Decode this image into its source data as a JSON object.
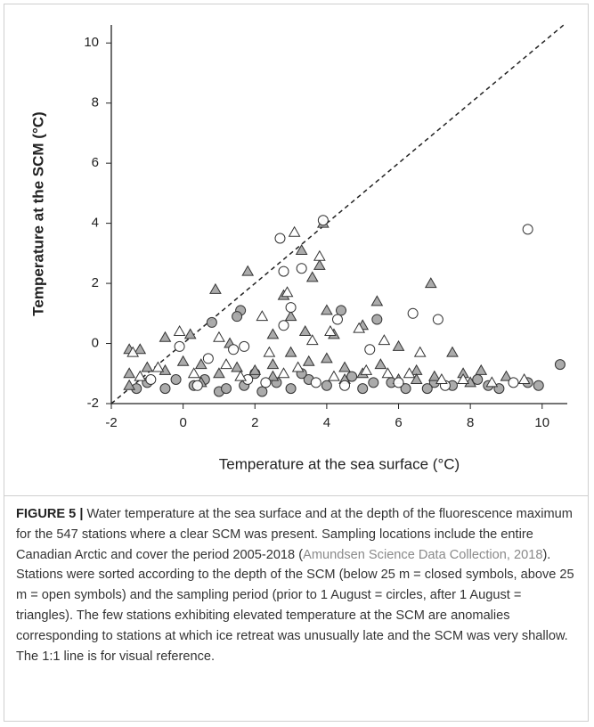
{
  "chart_data": {
    "type": "scatter",
    "x_label": "Temperature at the sea surface (°C)",
    "y_label": "Temperature at the SCM (°C)",
    "xlim": [
      -2,
      10.7
    ],
    "ylim": [
      -2,
      10.6
    ],
    "xticks": [
      -2,
      0,
      2,
      4,
      6,
      8,
      10
    ],
    "yticks": [
      -2,
      0,
      2,
      4,
      6,
      8,
      10
    ],
    "reference_line": "1:1",
    "grid": false,
    "series": [
      {
        "marker": "circle",
        "color": "#a6a6a6",
        "x": [
          0.8,
          1.6,
          1.5,
          4.4,
          5.4,
          10.5,
          9.6,
          9.9,
          8.8,
          7.5,
          6.2,
          5.0,
          3.0,
          2.2,
          1.0,
          0.3,
          -0.5,
          -1.3,
          -1.0,
          4.0,
          5.8,
          7.0,
          8.2,
          3.5,
          2.6,
          1.7,
          -0.2,
          2.0,
          4.7,
          6.8,
          8.5,
          1.2,
          0.6,
          3.3,
          5.3
        ],
        "values": [
          0.7,
          1.1,
          0.9,
          1.1,
          0.8,
          -0.7,
          -1.3,
          -1.4,
          -1.5,
          -1.4,
          -1.5,
          -1.5,
          -1.5,
          -1.6,
          -1.6,
          -1.4,
          -1.5,
          -1.5,
          -1.3,
          -1.4,
          -1.3,
          -1.3,
          -1.2,
          -1.2,
          -1.3,
          -1.4,
          -1.2,
          -1.0,
          -1.1,
          -1.5,
          -1.4,
          -1.5,
          -1.2,
          -1.0,
          -1.3
        ]
      },
      {
        "marker": "triangle",
        "color": "#a6a6a6",
        "x": [
          0.9,
          1.8,
          3.3,
          3.6,
          3.8,
          3.9,
          6.9,
          5.4,
          2.8,
          3.0,
          4.0,
          -1.5,
          -1.2,
          -0.5,
          0.2,
          1.3,
          2.5,
          3.4,
          4.2,
          5.0,
          6.0,
          7.5,
          8.3,
          9.0,
          7.8,
          6.5,
          5.5,
          4.5,
          3.5,
          2.5,
          1.5,
          0.5,
          -0.5,
          -1.5,
          -1.0,
          0.0,
          1.0,
          2.0,
          3.0,
          4.0,
          5.0,
          6.0,
          7.0,
          8.0,
          -1.5,
          0.5,
          2.5,
          4.5,
          6.5
        ],
        "values": [
          1.8,
          2.4,
          3.1,
          2.2,
          2.6,
          4.0,
          2.0,
          1.4,
          1.6,
          0.9,
          1.1,
          -0.2,
          -0.2,
          0.2,
          0.3,
          0.0,
          0.3,
          0.4,
          0.3,
          0.6,
          -0.1,
          -0.3,
          -0.9,
          -1.1,
          -1.0,
          -0.9,
          -0.7,
          -0.8,
          -0.6,
          -0.7,
          -0.8,
          -0.7,
          -0.9,
          -1.0,
          -0.8,
          -0.6,
          -1.0,
          -0.9,
          -0.3,
          -0.5,
          -1.0,
          -1.2,
          -1.1,
          -1.3,
          -1.4,
          -1.3,
          -1.1,
          -1.2,
          -1.2
        ]
      },
      {
        "marker": "circle",
        "color": "#ffffff",
        "x": [
          3.9,
          2.7,
          9.6,
          2.8,
          3.3,
          3.0,
          7.1,
          6.4,
          2.8,
          1.4,
          1.7,
          0.7,
          -0.1,
          4.3,
          5.2,
          -0.9,
          0.4,
          2.3,
          4.5,
          6.0,
          7.3,
          9.2,
          1.8,
          3.7
        ],
        "values": [
          4.1,
          3.5,
          3.8,
          2.4,
          2.5,
          1.2,
          0.8,
          1.0,
          0.6,
          -0.2,
          -0.1,
          -0.5,
          -0.1,
          0.8,
          -0.2,
          -1.2,
          -1.4,
          -1.3,
          -1.4,
          -1.3,
          -1.4,
          -1.3,
          -1.2,
          -1.3
        ]
      },
      {
        "marker": "triangle",
        "color": "#ffffff",
        "x": [
          3.1,
          3.8,
          2.2,
          2.9,
          4.1,
          5.6,
          4.9,
          6.6,
          -1.4,
          -0.1,
          1.0,
          2.4,
          3.6,
          -0.7,
          0.3,
          1.6,
          2.8,
          4.2,
          5.7,
          7.2,
          8.6,
          9.5,
          -1.2,
          1.2,
          3.2,
          5.1,
          6.3,
          7.8
        ],
        "values": [
          3.7,
          2.9,
          0.9,
          1.7,
          0.4,
          0.1,
          0.5,
          -0.3,
          -0.3,
          0.4,
          0.2,
          -0.3,
          0.1,
          -0.8,
          -1.0,
          -1.1,
          -1.0,
          -1.1,
          -1.0,
          -1.2,
          -1.3,
          -1.2,
          -1.1,
          -0.7,
          -0.8,
          -0.9,
          -1.0,
          -1.2
        ]
      }
    ]
  },
  "caption": {
    "label": "FIGURE 5 |",
    "text_1": "Water temperature at the sea surface and at the depth of the fluorescence maximum for the 547 stations where a clear SCM was present. Sampling locations include the entire Canadian Arctic and cover the period 2005-2018 (",
    "citation": "Amundsen Science Data Collection, 2018",
    "text_2": "). Stations were sorted according to the depth of the SCM (below 25 m = closed symbols, above 25 m = open symbols) and the sampling period (prior to 1 August = circles, after 1 August = triangles). The few stations exhibiting elevated temperature at the SCM are anomalies corresponding to stations at which ice retreat was unusually late and the SCM was very shallow. The 1:1 line is for visual reference."
  }
}
